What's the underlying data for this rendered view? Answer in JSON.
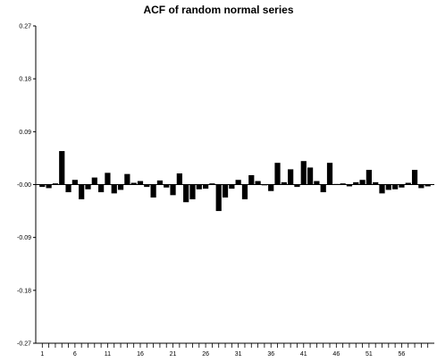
{
  "chart_data": {
    "type": "bar",
    "title": "ACF of random normal series",
    "xlabel": "",
    "ylabel": "",
    "ylim": [
      -0.27,
      0.27
    ],
    "yticks": [
      "0.27",
      "0.18",
      "0.09",
      "-0.00",
      "-0.09",
      "-0.18",
      "-0.27"
    ],
    "ytick_values": [
      0.27,
      0.18,
      0.09,
      0.0,
      -0.09,
      -0.18,
      -0.27
    ],
    "xticks": [
      "1",
      "6",
      "11",
      "16",
      "21",
      "26",
      "31",
      "36",
      "41",
      "46",
      "51",
      "56"
    ],
    "xtick_values": [
      1,
      6,
      11,
      16,
      21,
      26,
      31,
      36,
      41,
      46,
      51,
      56
    ],
    "xlim": [
      0,
      61
    ],
    "lags": [
      1,
      2,
      3,
      4,
      5,
      6,
      7,
      8,
      9,
      10,
      11,
      12,
      13,
      14,
      15,
      16,
      17,
      18,
      19,
      20,
      21,
      22,
      23,
      24,
      25,
      26,
      27,
      28,
      29,
      30,
      31,
      32,
      33,
      34,
      35,
      36,
      37,
      38,
      39,
      40,
      41,
      42,
      43,
      44,
      45,
      46,
      47,
      48,
      49,
      50,
      51,
      52,
      53,
      54,
      55,
      56,
      57,
      58,
      59,
      60
    ],
    "values": [
      -0.004,
      -0.006,
      0.002,
      0.057,
      -0.013,
      0.008,
      -0.025,
      -0.008,
      0.012,
      -0.013,
      0.02,
      -0.015,
      -0.009,
      0.018,
      0.003,
      0.006,
      -0.004,
      -0.022,
      0.007,
      -0.005,
      -0.018,
      0.019,
      -0.03,
      -0.025,
      -0.008,
      -0.007,
      0.002,
      -0.045,
      -0.022,
      -0.007,
      0.008,
      -0.025,
      0.016,
      0.006,
      0.0,
      -0.011,
      0.037,
      0.004,
      0.026,
      -0.004,
      0.04,
      0.029,
      0.006,
      -0.013,
      0.037,
      0.001,
      0.002,
      -0.003,
      0.004,
      0.008,
      0.025,
      0.004,
      -0.015,
      -0.009,
      -0.008,
      -0.005,
      0.003,
      0.025,
      -0.006,
      -0.003
    ],
    "colors": {
      "bar": "#000000",
      "axis": "#000000"
    }
  }
}
